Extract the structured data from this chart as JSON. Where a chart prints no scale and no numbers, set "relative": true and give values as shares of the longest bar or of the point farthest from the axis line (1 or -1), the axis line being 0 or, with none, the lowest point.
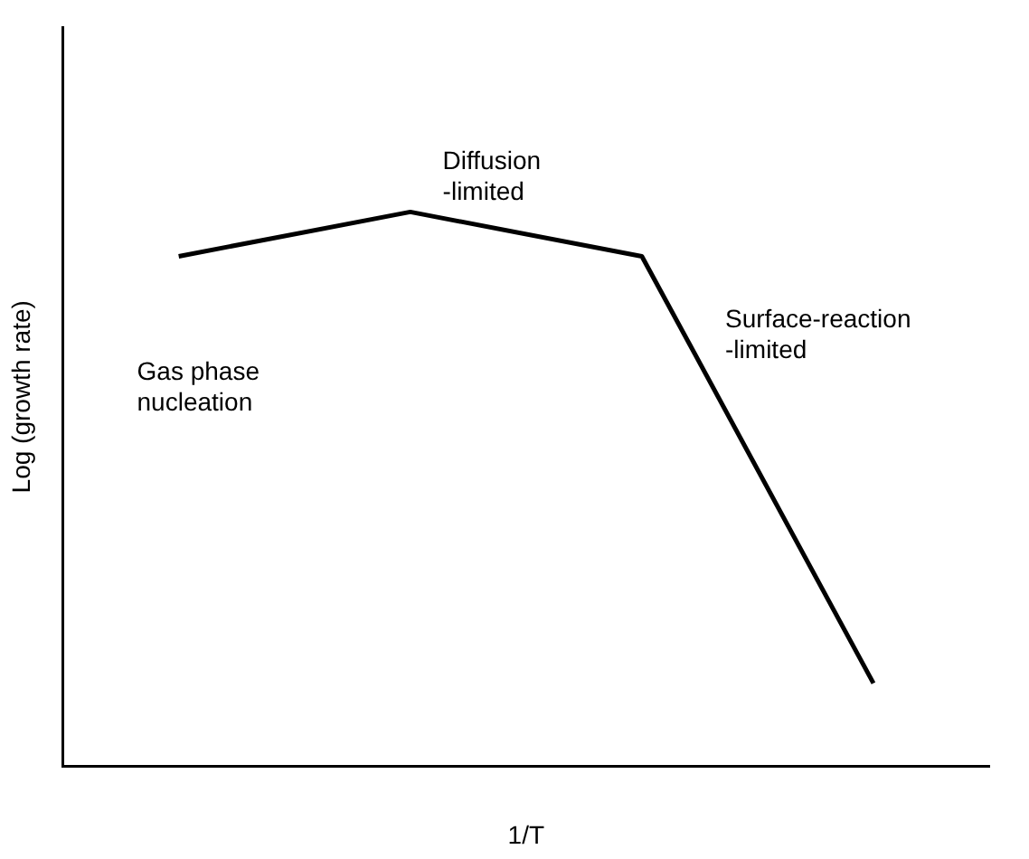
{
  "chart_data": {
    "type": "line",
    "xlabel": "1/T",
    "ylabel": "Log (growth rate)",
    "relative": true,
    "categories": [
      null,
      null,
      null,
      null
    ],
    "series": [
      {
        "color": "#000000",
        "values": [
          0.92,
          1,
          0.92,
          0.15
        ]
      }
    ],
    "annotations": [
      "Diffusion\n-limited",
      "Gas phase\nnucleation",
      "Surface-reaction\n-limited"
    ],
    "grid": false,
    "legend": false,
    "marker": "none",
    "line_style": "solid"
  }
}
